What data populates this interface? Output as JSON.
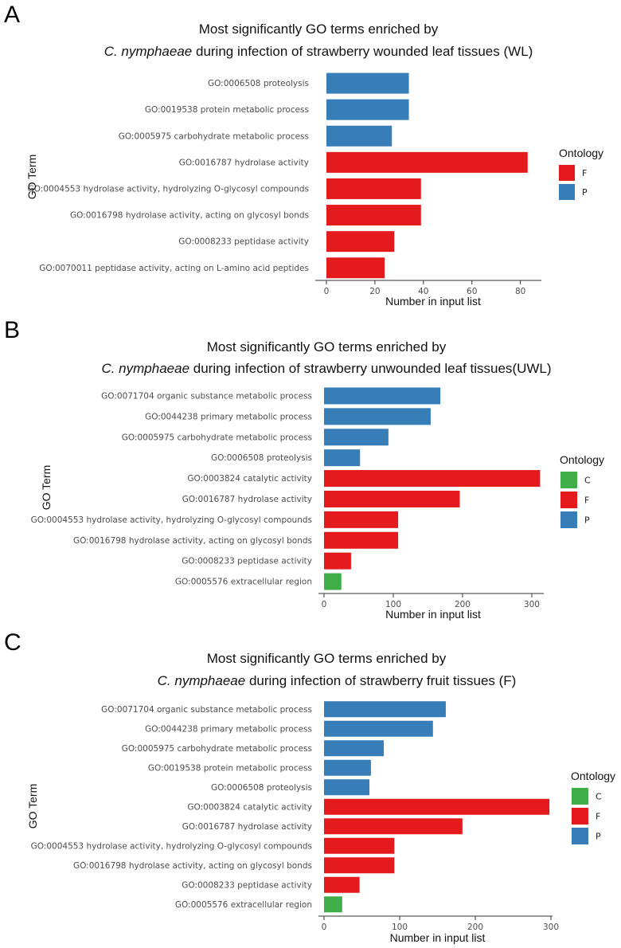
{
  "colors": {
    "C": "#3fae49",
    "F": "#e41a1c",
    "P": "#377eb8"
  },
  "chart_data": [
    {
      "type": "bar",
      "panel": "A",
      "title_line1": "Most significantly GO terms enriched by",
      "title_line2_italic": "C. nymphaeae",
      "title_line2_rest": " during infection of strawberry wounded leaf tissues ",
      "title_line2_tag": "(WL)",
      "xlabel": "Number in input list",
      "ylabel": "GO Term",
      "xlim": [
        0,
        88
      ],
      "xticks": [
        0,
        20,
        40,
        60,
        80
      ],
      "legend_title": "Ontology",
      "legend": [
        "F",
        "P"
      ],
      "categories": [
        "GO:0006508 proteolysis",
        "GO:0019538 protein metabolic process",
        "GO:0005975 carbohydrate metabolic process",
        "GO:0016787 hydrolase activity",
        "GO:0004553 hydrolase activity, hydrolyzing O-glycosyl compounds",
        "GO:0016798 hydrolase activity, acting on glycosyl bonds",
        "GO:0008233 peptidase activity",
        "GO:0070011 peptidase activity, acting on L-amino acid peptides"
      ],
      "values": [
        34,
        34,
        27,
        83,
        39,
        39,
        28,
        24
      ],
      "ontology": [
        "P",
        "P",
        "P",
        "F",
        "F",
        "F",
        "F",
        "F"
      ]
    },
    {
      "type": "bar",
      "panel": "B",
      "title_line1": "Most significantly GO terms enriched by",
      "title_line2_italic": "C. nymphaeae",
      "title_line2_rest": " during infection of strawberry unwounded leaf tissues",
      "title_line2_tag": "(UWL)",
      "xlabel": "Number in input list",
      "ylabel": "GO Term",
      "xlim": [
        0,
        315
      ],
      "xticks": [
        0,
        100,
        200,
        300
      ],
      "legend_title": "Ontology",
      "legend": [
        "C",
        "F",
        "P"
      ],
      "categories": [
        "GO:0071704 organic substance metabolic process",
        "GO:0044238 primary metabolic process",
        "GO:0005975 carbohydrate metabolic process",
        "GO:0006508 proteolysis",
        "GO:0003824 catalytic activity",
        "GO:0016787 hydrolase activity",
        "GO:0004553 hydrolase activity, hydrolyzing O-glycosyl compounds",
        "GO:0016798 hydrolase activity, acting on glycosyl bonds",
        "GO:0008233 peptidase activity",
        "GO:0005576 extracellular region"
      ],
      "values": [
        168,
        154,
        93,
        52,
        312,
        196,
        107,
        107,
        39,
        25
      ],
      "ontology": [
        "P",
        "P",
        "P",
        "P",
        "F",
        "F",
        "F",
        "F",
        "F",
        "C"
      ]
    },
    {
      "type": "bar",
      "panel": "C",
      "title_line1": "Most significantly GO terms enriched by",
      "title_line2_italic": "C. nymphaeae",
      "title_line2_rest": " during infection of strawberry fruit tissues ",
      "title_line2_tag": "(F)",
      "xlabel": "Number in input list",
      "ylabel": "GO Term",
      "xlim": [
        0,
        300
      ],
      "xticks": [
        0,
        100,
        200,
        300
      ],
      "legend_title": "Ontology",
      "legend": [
        "C",
        "F",
        "P"
      ],
      "categories": [
        "GO:0071704 organic substance metabolic process",
        "GO:0044238 primary metabolic process",
        "GO:0005975 carbohydrate metabolic process",
        "GO:0019538 protein metabolic process",
        "GO:0006508 proteolysis",
        "GO:0003824 catalytic activity",
        "GO:0016787 hydrolase activity",
        "GO:0004553 hydrolase activity, hydrolyzing O-glycosyl compounds",
        "GO:0016798 hydrolase activity, acting on glycosyl bonds",
        "GO:0008233 peptidase activity",
        "GO:0005576 extracellular region"
      ],
      "values": [
        161,
        144,
        79,
        62,
        60,
        298,
        183,
        93,
        93,
        47,
        24
      ],
      "ontology": [
        "P",
        "P",
        "P",
        "P",
        "P",
        "F",
        "F",
        "F",
        "F",
        "F",
        "C"
      ]
    }
  ]
}
